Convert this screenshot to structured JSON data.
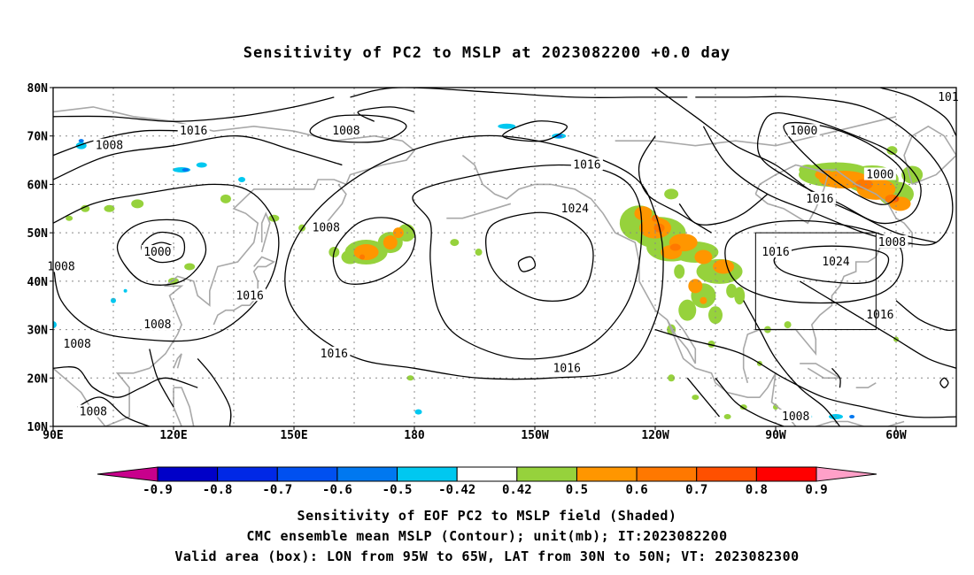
{
  "title": "Sensitivity of PC2 to MSLP at 2023082200 +0.0 day",
  "map": {
    "lat_labels": [
      "80N",
      "70N",
      "60N",
      "50N",
      "40N",
      "30N",
      "20N",
      "10N"
    ],
    "lon_labels": [
      "90E",
      "120E",
      "150E",
      "180",
      "150W",
      "120W",
      "90W",
      "60W"
    ],
    "lat_range": [
      10,
      80
    ],
    "lon_range_east": [
      90,
      315
    ],
    "gridlines": true,
    "valid_box": {
      "lon_west": -95,
      "lon_east": -65,
      "lat_south": 30,
      "lat_north": 50
    },
    "contour_labels": [
      {
        "text": "1016",
        "lon": 125,
        "lat": 71
      },
      {
        "text": "1008",
        "lon": 104,
        "lat": 68
      },
      {
        "text": "1008",
        "lon": 163,
        "lat": 71
      },
      {
        "text": "1016",
        "lon": 223,
        "lat": 64
      },
      {
        "text": "1024",
        "lon": 220,
        "lat": 55
      },
      {
        "text": "1008",
        "lon": 158,
        "lat": 51
      },
      {
        "text": "1000",
        "lon": 116,
        "lat": 46
      },
      {
        "text": "1008",
        "lon": 92,
        "lat": 43
      },
      {
        "text": "1016",
        "lon": 139,
        "lat": 37
      },
      {
        "text": "1008",
        "lon": 116,
        "lat": 31
      },
      {
        "text": "1008",
        "lon": 96,
        "lat": 27
      },
      {
        "text": "1016",
        "lon": 160,
        "lat": 25
      },
      {
        "text": "1016",
        "lon": 218,
        "lat": 22
      },
      {
        "text": "1008",
        "lon": 100,
        "lat": 13
      },
      {
        "text": "1000",
        "lon": 277,
        "lat": 71
      },
      {
        "text": "1000",
        "lon": 296,
        "lat": 62
      },
      {
        "text": "1016",
        "lon": 281,
        "lat": 57
      },
      {
        "text": "1008",
        "lon": 299,
        "lat": 48
      },
      {
        "text": "1016",
        "lon": 270,
        "lat": 46
      },
      {
        "text": "1024",
        "lon": 285,
        "lat": 44
      },
      {
        "text": "1016",
        "lon": 296,
        "lat": 33
      },
      {
        "text": "1008",
        "lon": 275,
        "lat": 12
      },
      {
        "text": "101",
        "lon": 313,
        "lat": 78
      }
    ]
  },
  "colorbar": {
    "labels": [
      "-0.9",
      "-0.8",
      "-0.7",
      "-0.6",
      "-0.5",
      "-0.42",
      "0.42",
      "0.5",
      "0.6",
      "0.7",
      "0.8",
      "0.9"
    ],
    "colors": [
      "#c8008c",
      "#0000c8",
      "#0028e6",
      "#0050f0",
      "#0078f0",
      "#00c8f0",
      "#ffffff",
      "#96d23c",
      "#ff9600",
      "#ff7800",
      "#ff5000",
      "#ff0000",
      "#ffa0c8"
    ]
  },
  "captions": [
    "Sensitivity of EOF PC2 to MSLP field (Shaded)",
    "CMC ensemble mean MSLP (Contour); unit(mb); IT:2023082200",
    "Valid area (box): LON from 95W to 65W, LAT from 30N to 50N; VT: 2023082300"
  ]
}
